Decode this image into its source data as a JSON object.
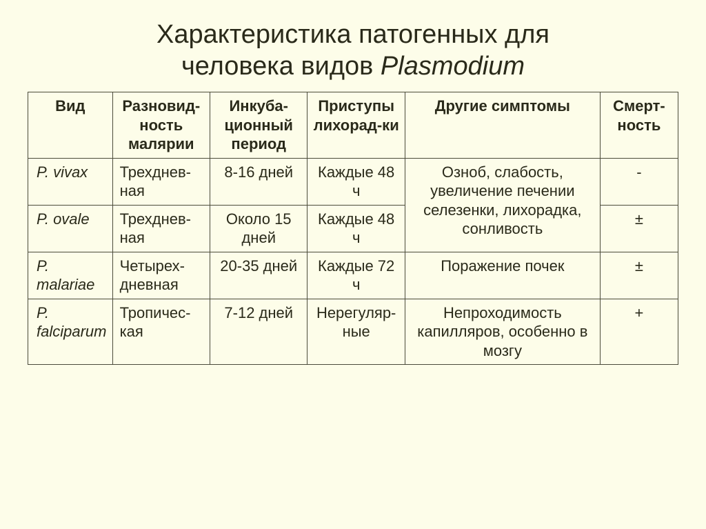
{
  "title_line1": "Характеристика патогенных для",
  "title_line2_a": "человека видов ",
  "title_line2_em": "Plasmodium",
  "headers": {
    "c1": "Вид",
    "c2": "Разновид-ность малярии",
    "c3": "Инкуба-ционный период",
    "c4": "Приступы лихорад-ки",
    "c5": "Другие симптомы",
    "c6": "Смерт-ность"
  },
  "rows": {
    "r1": {
      "species": "P. vivax",
      "variety": "Трехднев-ная",
      "incubation": "8-16 дней",
      "attacks": "Каждые 48 ч",
      "mortality": "-"
    },
    "r2": {
      "species": "P. ovale",
      "variety": "Трехднев-ная",
      "incubation": "Около 15 дней",
      "attacks": "Каждые 48 ч",
      "mortality": "±"
    },
    "symptoms_r1r2": "Озноб, слабость, увеличение печении селезенки, лихорадка, сонливость",
    "r3": {
      "species": "P. malariae",
      "variety": "Четырех-дневная",
      "incubation": "20-35 дней",
      "attacks": "Каждые 72 ч",
      "symptoms": "Поражение почек",
      "mortality": "±"
    },
    "r4": {
      "species": "P. falciparum",
      "variety": "Тропичес-кая",
      "incubation": "7-12 дней",
      "attacks": "Нерегуляр-ные",
      "symptoms": "Непроходимость капилляров, особенно в мозгу",
      "mortality": "+"
    }
  },
  "styling": {
    "background_color": "#fdfde9",
    "border_color": "#4a4a3a",
    "text_color": "#2a2a1a",
    "title_fontsize": 38,
    "header_fontsize": 22,
    "cell_fontsize": 22,
    "font_family": "Arial",
    "col_widths_pct": [
      13,
      15,
      15,
      15,
      30,
      12
    ]
  }
}
